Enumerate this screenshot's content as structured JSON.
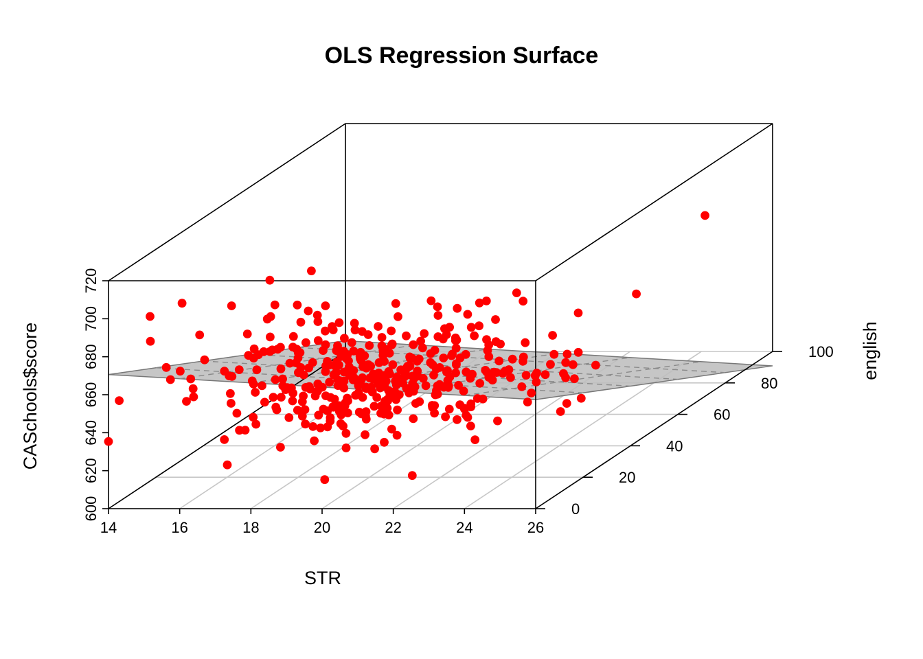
{
  "chart_data": {
    "type": "scatter3d",
    "title": "OLS Regression Surface",
    "xlabel": "STR",
    "ylabel": "english",
    "zlabel": "CASchools$score",
    "xlim": [
      14,
      26
    ],
    "ylim": [
      0,
      100
    ],
    "zlim": [
      600,
      720
    ],
    "xticks": [
      "14",
      "16",
      "18",
      "20",
      "22",
      "24",
      "26"
    ],
    "yticks": [
      "0",
      "20",
      "40",
      "60",
      "80",
      "100"
    ],
    "zticks": [
      "600",
      "620",
      "640",
      "660",
      "680",
      "700",
      "720"
    ],
    "point_color": "#ff0000",
    "surface_color": "#bebebe",
    "regression_surface": {
      "intercept": 686.03,
      "coef_STR": -1.1,
      "coef_english": -0.65
    },
    "n_points": 420,
    "points_sample": [
      {
        "STR": 14.0,
        "english": 0,
        "score": 635.4
      },
      {
        "STR": 14.3,
        "english": 0,
        "score": 656.9
      },
      {
        "STR": 14.9,
        "english": 4,
        "score": 697.9
      },
      {
        "STR": 15.4,
        "english": 10,
        "score": 699.9
      },
      {
        "STR": 16.3,
        "english": 6,
        "score": 673.4
      },
      {
        "STR": 17.6,
        "english": 14,
        "score": 708.7
      },
      {
        "STR": 18.5,
        "english": 18,
        "score": 710.3
      },
      {
        "STR": 20.6,
        "english": 8,
        "score": 662.3
      },
      {
        "STR": 21.2,
        "english": 28,
        "score": 686.3
      },
      {
        "STR": 22.2,
        "english": 24,
        "score": 685.6
      },
      {
        "STR": 24.4,
        "english": 16,
        "score": 700.4
      },
      {
        "STR": 25.2,
        "english": 30,
        "score": 678.2
      },
      {
        "STR": 22.4,
        "english": 2,
        "score": 615.8
      },
      {
        "STR": 21.3,
        "english": 20,
        "score": 638.9
      },
      {
        "STR": 19.1,
        "english": 12,
        "score": 639.3
      },
      {
        "STR": 25.9,
        "english": 12,
        "score": 641.2
      },
      {
        "STR": 25.5,
        "english": 50,
        "score": 671.7
      },
      {
        "STR": 25.3,
        "english": 82,
        "score": 686.5
      },
      {
        "STR": 26.0,
        "english": 18,
        "score": 667.4
      }
    ]
  }
}
